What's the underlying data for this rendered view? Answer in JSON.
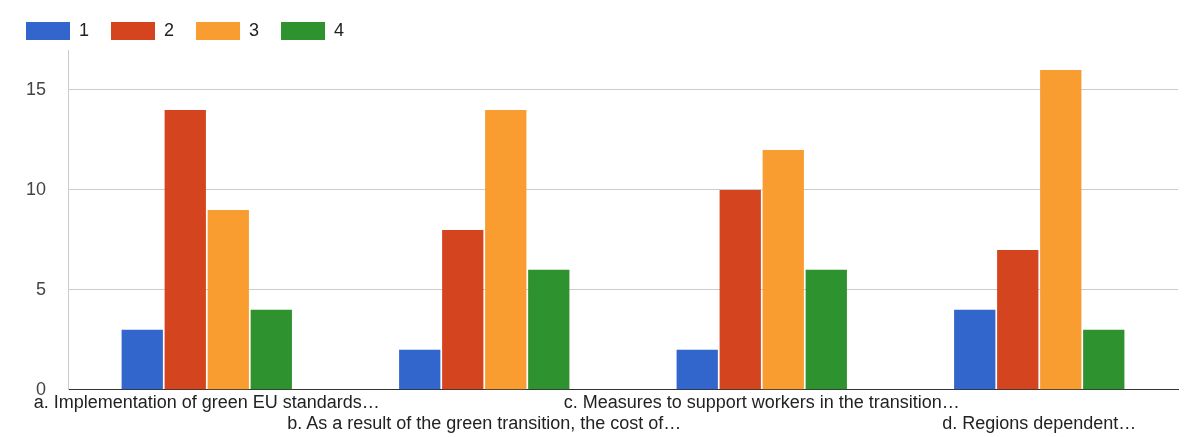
{
  "chart_data": {
    "type": "bar",
    "categories": [
      "a. Implementation of green EU standards…",
      "b. As a result of the green transition, the cost of…",
      "c. Measures to support workers in the transition…",
      "d. Regions dependent…"
    ],
    "series": [
      {
        "name": "1",
        "color": "#3366cc",
        "values": [
          3,
          2,
          2,
          4
        ]
      },
      {
        "name": "2",
        "color": "#d4441f",
        "values": [
          14,
          8,
          10,
          7
        ]
      },
      {
        "name": "3",
        "color": "#f99d30",
        "values": [
          9,
          14,
          12,
          16
        ]
      },
      {
        "name": "4",
        "color": "#2e922e",
        "values": [
          4,
          6,
          6,
          3
        ]
      }
    ],
    "ylim": [
      0,
      17
    ],
    "yticks": [
      0,
      5,
      10,
      15
    ],
    "grid": "y",
    "legend": "top left"
  }
}
